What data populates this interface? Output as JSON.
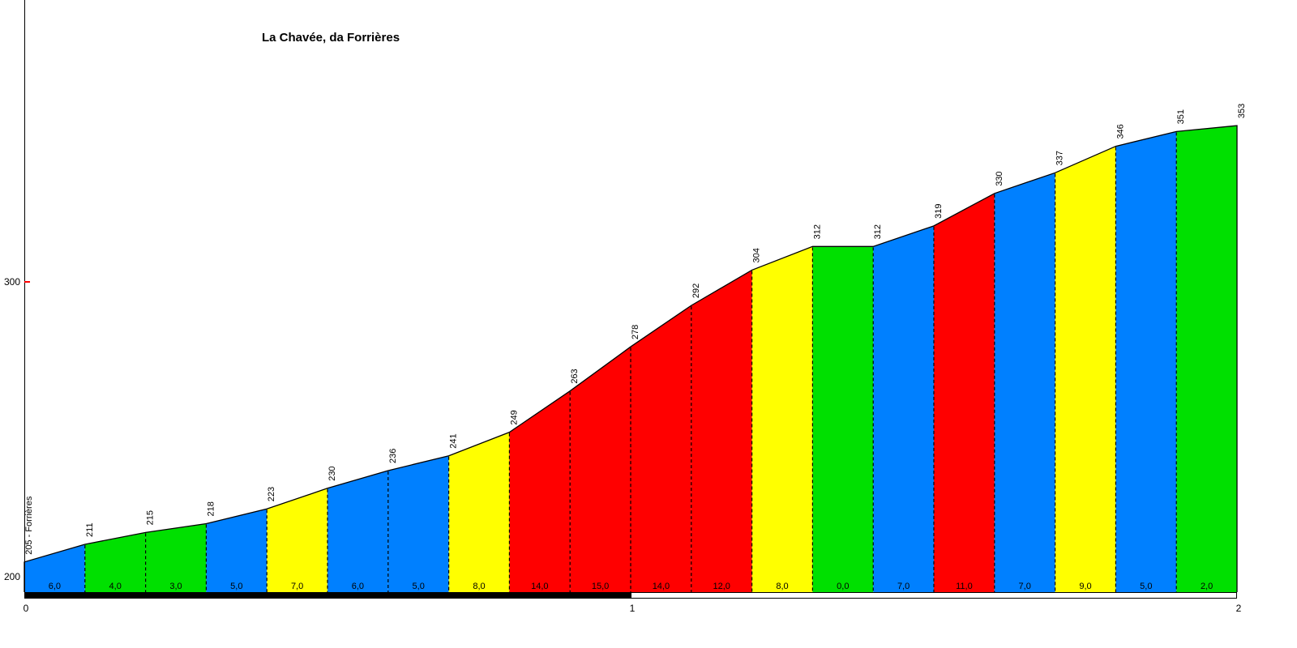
{
  "chart_data": {
    "type": "area",
    "title": "La Chavée, da Forrières",
    "start_label": "205 - Forrières",
    "x_range_km": [
      0,
      2
    ],
    "ylim": [
      200,
      353
    ],
    "segment_length_km": 0.1,
    "elevations_m": [
      205,
      211,
      215,
      218,
      223,
      230,
      236,
      241,
      249,
      263,
      278,
      292,
      304,
      312,
      312,
      319,
      330,
      337,
      346,
      351,
      353
    ],
    "elevation_labels": [
      "205 - Forrières",
      "211",
      "215",
      "218",
      "223",
      "230",
      "236",
      "241",
      "249",
      "263",
      "278",
      "292",
      "304",
      "312",
      "312",
      "319",
      "330",
      "337",
      "346",
      "351",
      "353"
    ],
    "segments": [
      {
        "gradient_label": "6,0",
        "gradient_pct": 6.0,
        "color": "blue"
      },
      {
        "gradient_label": "4,0",
        "gradient_pct": 4.0,
        "color": "green"
      },
      {
        "gradient_label": "3,0",
        "gradient_pct": 3.0,
        "color": "green"
      },
      {
        "gradient_label": "5,0",
        "gradient_pct": 5.0,
        "color": "blue"
      },
      {
        "gradient_label": "7,0",
        "gradient_pct": 7.0,
        "color": "yellow"
      },
      {
        "gradient_label": "6,0",
        "gradient_pct": 6.0,
        "color": "blue"
      },
      {
        "gradient_label": "5,0",
        "gradient_pct": 5.0,
        "color": "blue"
      },
      {
        "gradient_label": "8,0",
        "gradient_pct": 8.0,
        "color": "yellow"
      },
      {
        "gradient_label": "14,0",
        "gradient_pct": 14.0,
        "color": "red"
      },
      {
        "gradient_label": "15,0",
        "gradient_pct": 15.0,
        "color": "red"
      },
      {
        "gradient_label": "14,0",
        "gradient_pct": 14.0,
        "color": "red"
      },
      {
        "gradient_label": "12,0",
        "gradient_pct": 12.0,
        "color": "red"
      },
      {
        "gradient_label": "8,0",
        "gradient_pct": 8.0,
        "color": "yellow"
      },
      {
        "gradient_label": "0,0",
        "gradient_pct": 0.0,
        "color": "green"
      },
      {
        "gradient_label": "7,0",
        "gradient_pct": 7.0,
        "color": "blue"
      },
      {
        "gradient_label": "11,0",
        "gradient_pct": 11.0,
        "color": "red"
      },
      {
        "gradient_label": "7,0",
        "gradient_pct": 7.0,
        "color": "blue"
      },
      {
        "gradient_label": "9,0",
        "gradient_pct": 9.0,
        "color": "yellow"
      },
      {
        "gradient_label": "5,0",
        "gradient_pct": 5.0,
        "color": "blue"
      },
      {
        "gradient_label": "2,0",
        "gradient_pct": 2.0,
        "color": "green"
      }
    ],
    "gradient_colors": {
      "green": "#00e000",
      "blue": "#0080ff",
      "yellow": "#ffff00",
      "red": "#ff0000"
    },
    "x_axis": {
      "ticks": [
        {
          "label": "0",
          "km": 0
        },
        {
          "label": "1",
          "km": 1
        },
        {
          "label": "2",
          "km": 2
        }
      ]
    },
    "y_axis": {
      "ticks": [
        {
          "label": "200",
          "elevation": 200
        },
        {
          "label": "300",
          "elevation": 300
        }
      ],
      "tick_mark_color": "#ff0000"
    },
    "km_bars": [
      {
        "from_km": 0,
        "to_km": 1,
        "style": "black"
      },
      {
        "from_km": 1,
        "to_km": 2,
        "style": "white"
      }
    ],
    "line_color": "#000000"
  }
}
